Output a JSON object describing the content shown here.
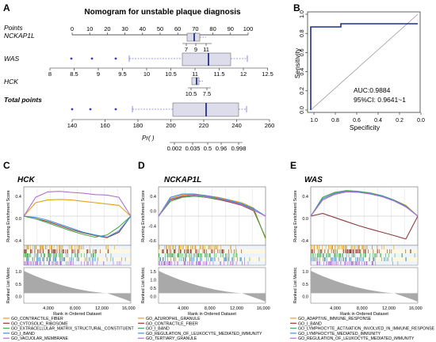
{
  "panel_letters": {
    "a": "A",
    "b": "B",
    "c": "C",
    "d": "D",
    "e": "E"
  },
  "colors": {
    "box_fill": "#dcdcea",
    "box_median": "#26318a",
    "whisker": "#3a3ad0",
    "roc_line": "#1f2f8c",
    "gsea_bar_yellow": "#ffe9a0"
  },
  "nomogram": {
    "title": "Nomogram for unstable plaque diagnosis",
    "points_label": "Points",
    "points_ticks": [
      "0",
      "10",
      "20",
      "30",
      "40",
      "50",
      "60",
      "70",
      "80",
      "90",
      "100"
    ],
    "nckap1l_label": "NCKAP1L",
    "nckap1l_ticks": [
      "7",
      "9",
      "11"
    ],
    "was_label": "WAS",
    "was_ticks": [
      "8",
      "8.5",
      "9",
      "9.5",
      "10",
      "10.5",
      "11",
      "11.5",
      "12",
      "12.5"
    ],
    "hck_label": "HCK",
    "hck_ticks": [
      "10.5",
      "7.5"
    ],
    "total_label": "Total points",
    "total_ticks": [
      "140",
      "160",
      "180",
      "200",
      "220",
      "240",
      "260"
    ],
    "pr_label": "Pr( )",
    "pr_ticks": [
      "0.002",
      "0.035",
      "0.5",
      "0.96",
      "0.998"
    ]
  },
  "roc": {
    "ylabel": "Sensitivity",
    "xlabel": "Specificity",
    "y_ticks": [
      "0.0",
      "0.2",
      "0.4",
      "0.6",
      "0.8",
      "1.0"
    ],
    "x_ticks": [
      "1.0",
      "0.8",
      "0.6",
      "0.4",
      "0.2",
      "0.0"
    ],
    "auc_text": "AUC:0.9884",
    "ci_text": "95%CI: 0.9641~1"
  },
  "gsea_common": {
    "res_ylabel": "Running Enrichment Score",
    "rlm_ylabel": "Ranked List Metric",
    "xlabel": "Rank in Ordered Dataset",
    "x_ticks": [
      "4,000",
      "8,000",
      "12,000",
      "16,000"
    ]
  },
  "gsea_panels": [
    {
      "gene": "HCK",
      "y_ticks": [
        "0.4",
        "0.0",
        "-0.4"
      ],
      "rlm_ticks": [
        "1.0",
        "0.5",
        "0.0"
      ],
      "legend": [
        "GO_CONTRACTILE_FIBER",
        "GO_CYTOSOLIC_RIBOSOME",
        "GO_EXTRACELLULAR_MATRIX_STRUCTURAL_CONSTITUENT",
        "GO_I_BAND",
        "GO_VACUOLAR_MEMBRANE"
      ]
    },
    {
      "gene": "NCKAP1L",
      "y_ticks": [
        "0.4",
        "0.0",
        "-0.4",
        "-0.6"
      ],
      "rlm_ticks": [
        "1.5",
        "1.0",
        "0.5",
        "0.0"
      ],
      "legend": [
        "GO_AZUROPHIL_GRANULE",
        "GO_CONTRACTILE_FIBER",
        "GO_I_BAND",
        "GO_REGULATION_OF_LEUKOCYTE_MEDIATED_IMMUNITY",
        "GO_TERTIARY_GRANULE"
      ]
    },
    {
      "gene": "WAS",
      "y_ticks": [
        "0.4",
        "0.0",
        "-0.4"
      ],
      "rlm_ticks": [
        "1.0",
        "0.5",
        "0.0"
      ],
      "legend": [
        "GO_ADAPTIVE_IMMUNE_RESPONSE",
        "GO_I_BAND",
        "GO_LYMPHOCYTE_ACTIVATION_INVOLVED_IN_IMMUNE_RESPONSE",
        "GO_LYMPHOCYTE_MEDIATED_IMMUNITY",
        "GO_REGULATION_OF_LEUKOCYTE_MEDIATED_IMMUNITY"
      ]
    }
  ],
  "legend_colors": [
    "#e5a01c",
    "#8e3c3c",
    "#4aa84a",
    "#3e8fd8",
    "#b070d0"
  ]
}
